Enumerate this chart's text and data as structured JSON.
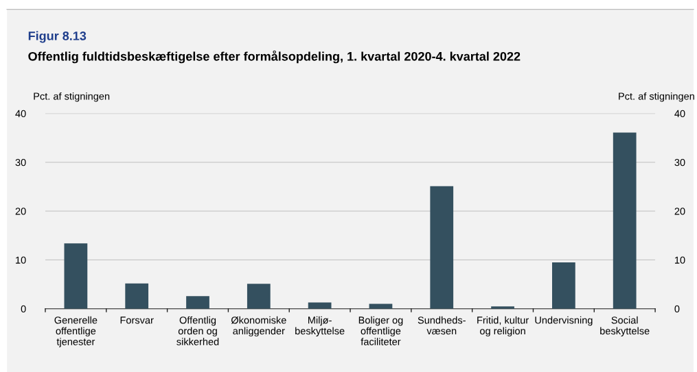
{
  "chart_data": {
    "type": "bar",
    "subtitle": "Figur 8.13",
    "title": "Offentlig fuldtidsbeskæftigelse efter formålsopdeling, 1. kvartal 2020-4. kvartal 2022",
    "ylabel": "Pct. af stigningen",
    "y2label": "Pct. af stigningen",
    "categories": [
      "Generelle\noffentlige\ntjenester",
      "Forsvar",
      "Offentlig\norden og\nsikkerhed",
      "Økonomiske\nanliggender",
      "Miljø-\nbeskyttelse",
      "Boliger og\noffentlige\nfaciliteter",
      "Sundheds-\nvæsen",
      "Fritid, kultur\nog religion",
      "Undervisning",
      "Social\nbeskyttelse"
    ],
    "values": [
      13.4,
      5.2,
      2.6,
      5.1,
      1.3,
      1.0,
      25.1,
      0.5,
      9.5,
      36.1
    ],
    "color": "#34505f",
    "ylim": [
      0,
      40
    ],
    "yticks": [
      0,
      10,
      20,
      30,
      40
    ],
    "y2lim": [
      0,
      40
    ],
    "y2ticks": [
      0,
      10,
      20,
      30,
      40
    ],
    "grid": "y"
  }
}
